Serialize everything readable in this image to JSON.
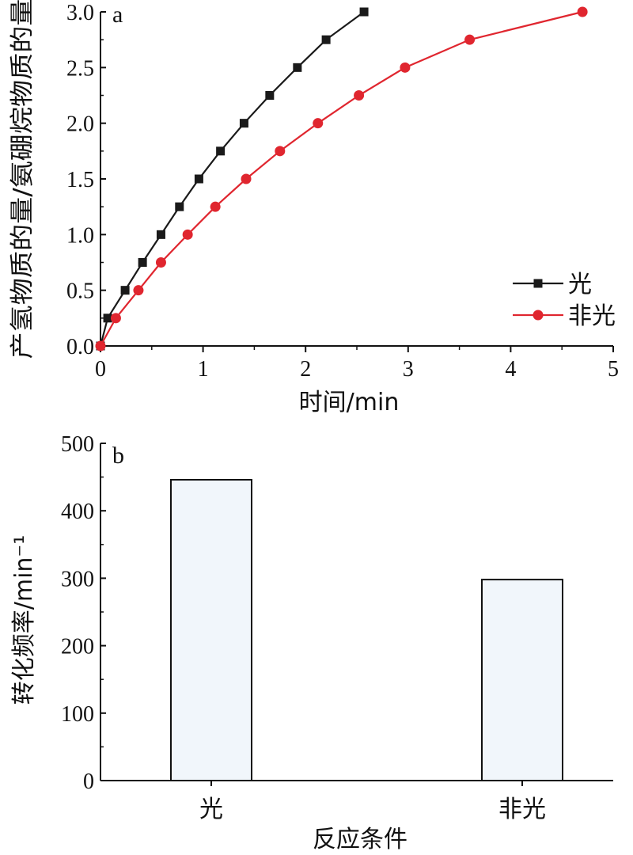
{
  "chart_data": [
    {
      "panel": "a",
      "type": "line",
      "xlabel": "时间/min",
      "ylabel": "产氢物质的量/氨硼烷物质的量",
      "xlim": [
        0,
        5
      ],
      "ylim": [
        0,
        3.0
      ],
      "x_ticks": [
        "0",
        "1",
        "2",
        "3",
        "4",
        "5"
      ],
      "y_ticks": [
        "0.0",
        "0.5",
        "1.0",
        "1.5",
        "2.0",
        "2.5",
        "3.0"
      ],
      "legend_position": "bottom-right",
      "series": [
        {
          "name": "光",
          "color": "#1a1a1a",
          "marker": "square",
          "x": [
            0,
            0.07,
            0.24,
            0.41,
            0.59,
            0.77,
            0.96,
            1.17,
            1.4,
            1.65,
            1.92,
            2.2,
            2.57
          ],
          "y": [
            0,
            0.25,
            0.5,
            0.75,
            1.0,
            1.25,
            1.5,
            1.75,
            2.0,
            2.25,
            2.5,
            2.75,
            3.0
          ]
        },
        {
          "name": "非光",
          "color": "#e0262f",
          "marker": "circle",
          "x": [
            0,
            0.15,
            0.37,
            0.59,
            0.85,
            1.12,
            1.42,
            1.75,
            2.12,
            2.52,
            2.97,
            3.6,
            4.7
          ],
          "y": [
            0,
            0.25,
            0.5,
            0.75,
            1.0,
            1.25,
            1.5,
            1.75,
            2.0,
            2.25,
            2.5,
            2.75,
            3.0
          ]
        }
      ]
    },
    {
      "panel": "b",
      "type": "bar",
      "xlabel": "反应条件",
      "ylabel": "转化频率/min⁻¹",
      "categories": [
        "光",
        "非光"
      ],
      "values": [
        446,
        298
      ],
      "ylim": [
        0,
        500
      ],
      "y_ticks": [
        "0",
        "100",
        "200",
        "300",
        "400",
        "500"
      ],
      "bar_color": "#f1f6fb",
      "bar_edge": "#111111"
    }
  ]
}
